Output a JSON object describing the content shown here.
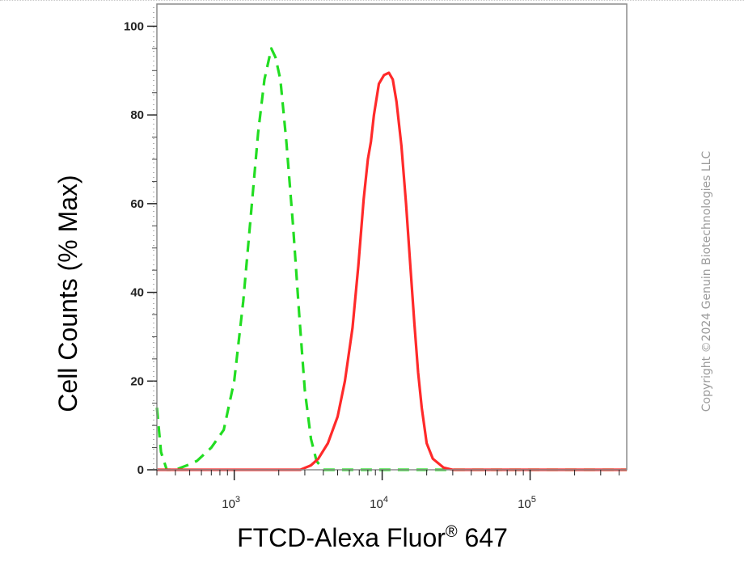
{
  "chart_data": {
    "type": "line",
    "title": "",
    "xlabel": "FTCD-Alexa Fluor",
    "xlabel_superscript": "®",
    "xlabel_suffix": " 647",
    "ylabel": "Cell Counts (% Max)",
    "x_scale": "log",
    "xlim": [
      300,
      450000
    ],
    "ylim": [
      0,
      105
    ],
    "y_ticks": [
      0,
      20,
      40,
      60,
      80,
      100
    ],
    "x_ticks": [
      {
        "value": 1000,
        "base": "10",
        "exp": "3"
      },
      {
        "value": 10000,
        "base": "10",
        "exp": "4"
      },
      {
        "value": 100000,
        "base": "10",
        "exp": "5"
      }
    ],
    "grid": false,
    "legend": "none",
    "series": [
      {
        "color": "#22dd22",
        "style": "dashed",
        "points": [
          [
            300,
            14
          ],
          [
            320,
            4
          ],
          [
            350,
            0
          ],
          [
            400,
            0
          ],
          [
            480,
            1
          ],
          [
            560,
            2
          ],
          [
            700,
            5
          ],
          [
            850,
            9
          ],
          [
            1000,
            20
          ],
          [
            1150,
            38
          ],
          [
            1300,
            58
          ],
          [
            1450,
            76
          ],
          [
            1600,
            88
          ],
          [
            1780,
            95
          ],
          [
            1900,
            93
          ],
          [
            2050,
            88
          ],
          [
            2250,
            74
          ],
          [
            2500,
            55
          ],
          [
            2750,
            35
          ],
          [
            3000,
            18
          ],
          [
            3300,
            7
          ],
          [
            3600,
            2
          ],
          [
            4000,
            0
          ],
          [
            5000,
            0
          ],
          [
            10000,
            0
          ],
          [
            100000,
            0
          ],
          [
            450000,
            0
          ]
        ]
      },
      {
        "color": "#ff2a2a",
        "style": "solid",
        "points": [
          [
            300,
            0
          ],
          [
            2000,
            0
          ],
          [
            2800,
            0
          ],
          [
            3300,
            1
          ],
          [
            3700,
            2.5
          ],
          [
            4300,
            6
          ],
          [
            5000,
            12
          ],
          [
            5600,
            20
          ],
          [
            6300,
            32
          ],
          [
            6900,
            46
          ],
          [
            7500,
            61
          ],
          [
            8000,
            70
          ],
          [
            8400,
            74
          ],
          [
            8800,
            80
          ],
          [
            9500,
            87
          ],
          [
            10300,
            89
          ],
          [
            11100,
            89.5
          ],
          [
            11800,
            88
          ],
          [
            12500,
            83
          ],
          [
            13500,
            73
          ],
          [
            14500,
            60
          ],
          [
            15500,
            46
          ],
          [
            16500,
            33
          ],
          [
            17500,
            22
          ],
          [
            18500,
            14
          ],
          [
            20000,
            6
          ],
          [
            22000,
            2.5
          ],
          [
            26000,
            0.5
          ],
          [
            30000,
            0
          ],
          [
            100000,
            0
          ],
          [
            450000,
            0
          ]
        ]
      }
    ]
  },
  "watermark": "Copyright ©2024 Genuin Biotechnologies LLC"
}
